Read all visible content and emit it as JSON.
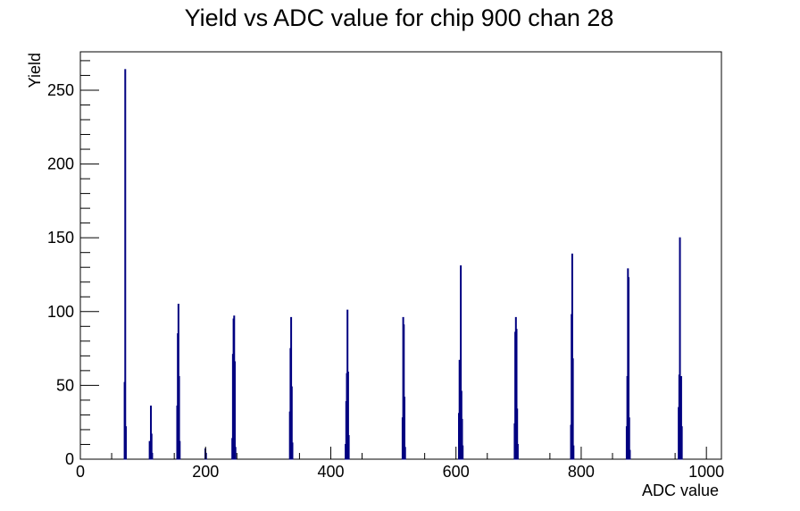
{
  "chart_data": {
    "type": "bar",
    "title": "Yield vs ADC value for chip 900 chan 28",
    "xlabel": "ADC value",
    "ylabel": "Yield",
    "xlim": [
      0,
      1024
    ],
    "ylim": [
      0,
      276
    ],
    "x_ticks": [
      0,
      200,
      400,
      600,
      800,
      1000
    ],
    "x_tick_labels": [
      "0",
      "200",
      "400",
      "600",
      "800",
      "1000"
    ],
    "y_ticks": [
      0,
      50,
      100,
      150,
      200,
      250
    ],
    "y_tick_labels": [
      "0",
      "50",
      "100",
      "150",
      "200",
      "250"
    ],
    "bar_color": "#000080",
    "grid": false,
    "series": [
      {
        "points": [
          {
            "x": 70,
            "y": 52
          },
          {
            "x": 71,
            "y": 264
          },
          {
            "x": 72,
            "y": 22
          },
          {
            "x": 110,
            "y": 12
          },
          {
            "x": 111,
            "y": 9
          },
          {
            "x": 112,
            "y": 36
          },
          {
            "x": 113,
            "y": 17
          },
          {
            "x": 114,
            "y": 4
          },
          {
            "x": 154,
            "y": 36
          },
          {
            "x": 155,
            "y": 85
          },
          {
            "x": 156,
            "y": 105
          },
          {
            "x": 157,
            "y": 56
          },
          {
            "x": 158,
            "y": 12
          },
          {
            "x": 199,
            "y": 7
          },
          {
            "x": 200,
            "y": 4
          },
          {
            "x": 242,
            "y": 14
          },
          {
            "x": 243,
            "y": 71
          },
          {
            "x": 244,
            "y": 95
          },
          {
            "x": 245,
            "y": 97
          },
          {
            "x": 246,
            "y": 66
          },
          {
            "x": 247,
            "y": 8
          },
          {
            "x": 334,
            "y": 32
          },
          {
            "x": 335,
            "y": 75
          },
          {
            "x": 336,
            "y": 96
          },
          {
            "x": 337,
            "y": 49
          },
          {
            "x": 338,
            "y": 11
          },
          {
            "x": 423,
            "y": 10
          },
          {
            "x": 424,
            "y": 39
          },
          {
            "x": 425,
            "y": 58
          },
          {
            "x": 426,
            "y": 101
          },
          {
            "x": 427,
            "y": 59
          },
          {
            "x": 428,
            "y": 16
          },
          {
            "x": 514,
            "y": 28
          },
          {
            "x": 515,
            "y": 96
          },
          {
            "x": 516,
            "y": 91
          },
          {
            "x": 517,
            "y": 42
          },
          {
            "x": 518,
            "y": 8
          },
          {
            "x": 604,
            "y": 31
          },
          {
            "x": 605,
            "y": 67
          },
          {
            "x": 606,
            "y": 36
          },
          {
            "x": 607,
            "y": 131
          },
          {
            "x": 608,
            "y": 46
          },
          {
            "x": 609,
            "y": 27
          },
          {
            "x": 610,
            "y": 9
          },
          {
            "x": 693,
            "y": 24
          },
          {
            "x": 694,
            "y": 86
          },
          {
            "x": 695,
            "y": 96
          },
          {
            "x": 696,
            "y": 88
          },
          {
            "x": 697,
            "y": 34
          },
          {
            "x": 698,
            "y": 10
          },
          {
            "x": 783,
            "y": 23
          },
          {
            "x": 784,
            "y": 98
          },
          {
            "x": 785,
            "y": 139
          },
          {
            "x": 786,
            "y": 68
          },
          {
            "x": 787,
            "y": 9
          },
          {
            "x": 872,
            "y": 22
          },
          {
            "x": 873,
            "y": 56
          },
          {
            "x": 874,
            "y": 129
          },
          {
            "x": 875,
            "y": 123
          },
          {
            "x": 876,
            "y": 28
          },
          {
            "x": 877,
            "y": 6
          },
          {
            "x": 955,
            "y": 35
          },
          {
            "x": 956,
            "y": 57
          },
          {
            "x": 957,
            "y": 150
          },
          {
            "x": 958,
            "y": 15
          },
          {
            "x": 959,
            "y": 56
          },
          {
            "x": 960,
            "y": 22
          }
        ]
      }
    ]
  }
}
